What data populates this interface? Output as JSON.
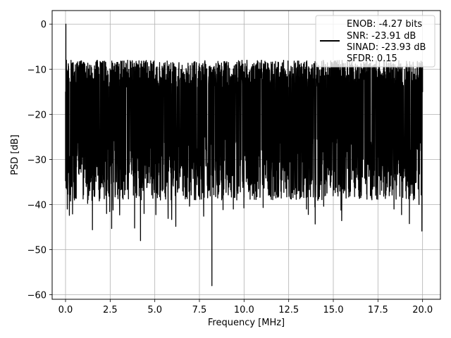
{
  "chart_data": {
    "type": "line",
    "title": "",
    "xlabel": "Frequency [MHz]",
    "ylabel": "PSD [dB]",
    "xlim": [
      -0.75,
      21.0
    ],
    "ylim": [
      -61,
      3
    ],
    "grid": true,
    "legend_placement": "top-right",
    "x_ticks": [
      "0.0",
      "2.5",
      "5.0",
      "7.5",
      "10.0",
      "12.5",
      "15.0",
      "17.5",
      "20.0"
    ],
    "y_ticks": [
      "0",
      "−10",
      "−20",
      "−30",
      "−40",
      "−50",
      "−60"
    ],
    "series": [
      {
        "name": "ENOB: -4.27 bits\nSNR: -23.91 dB\nSINAD: -23.93 dB\nSFDR: 0.15",
        "color": "#000000",
        "style": "noise-like PSD, ~ -10 to -30 dB band",
        "x": [
          0.0,
          0.02,
          0.05,
          0.1,
          0.2,
          0.3,
          0.4,
          0.5,
          0.6,
          0.8,
          1.0,
          1.2,
          1.4,
          1.6,
          1.8,
          2.0,
          2.2,
          2.3,
          2.5,
          2.8,
          3.0,
          3.2,
          3.5,
          3.8,
          4.0,
          4.2,
          4.3,
          4.4,
          4.6,
          4.8,
          5.0,
          5.3,
          5.6,
          5.8,
          6.0,
          6.3,
          6.6,
          7.0,
          7.3,
          7.6,
          7.9,
          8.1,
          8.2,
          8.4,
          8.7,
          9.0,
          9.4,
          9.7,
          10.0,
          10.4,
          10.8,
          11.2,
          11.6,
          12.0,
          12.4,
          12.8,
          13.2,
          13.5,
          13.8,
          14.2,
          14.6,
          15.0,
          15.4,
          15.8,
          16.2,
          16.6,
          17.0,
          17.4,
          17.8,
          18.2,
          18.6,
          19.0,
          19.3,
          19.6,
          19.8,
          20.0
        ],
        "values": [
          -15,
          0,
          -8,
          -41,
          -12,
          -25,
          -31,
          -39,
          -18,
          -22,
          -33,
          -12,
          -28,
          -37,
          -14,
          -26,
          -11,
          -42,
          -20,
          -31,
          -12,
          -28,
          -24,
          -35,
          -22,
          -48,
          -30,
          -42,
          -25,
          -30,
          -18,
          -32,
          -26,
          -28,
          -22,
          -30,
          -28,
          -18,
          -25,
          -30,
          -24,
          -20,
          -58,
          -25,
          -30,
          -35,
          -41,
          -25,
          -35,
          -28,
          -30,
          -22,
          -38,
          -20,
          -30,
          -28,
          -25,
          -41,
          -22,
          -35,
          -30,
          -25,
          -28,
          -32,
          -25,
          -30,
          -22,
          -30,
          -35,
          -25,
          -28,
          -32,
          -38,
          -30,
          -40,
          -15
        ]
      }
    ],
    "noise_band": {
      "upper": -8,
      "lower": -32
    }
  }
}
